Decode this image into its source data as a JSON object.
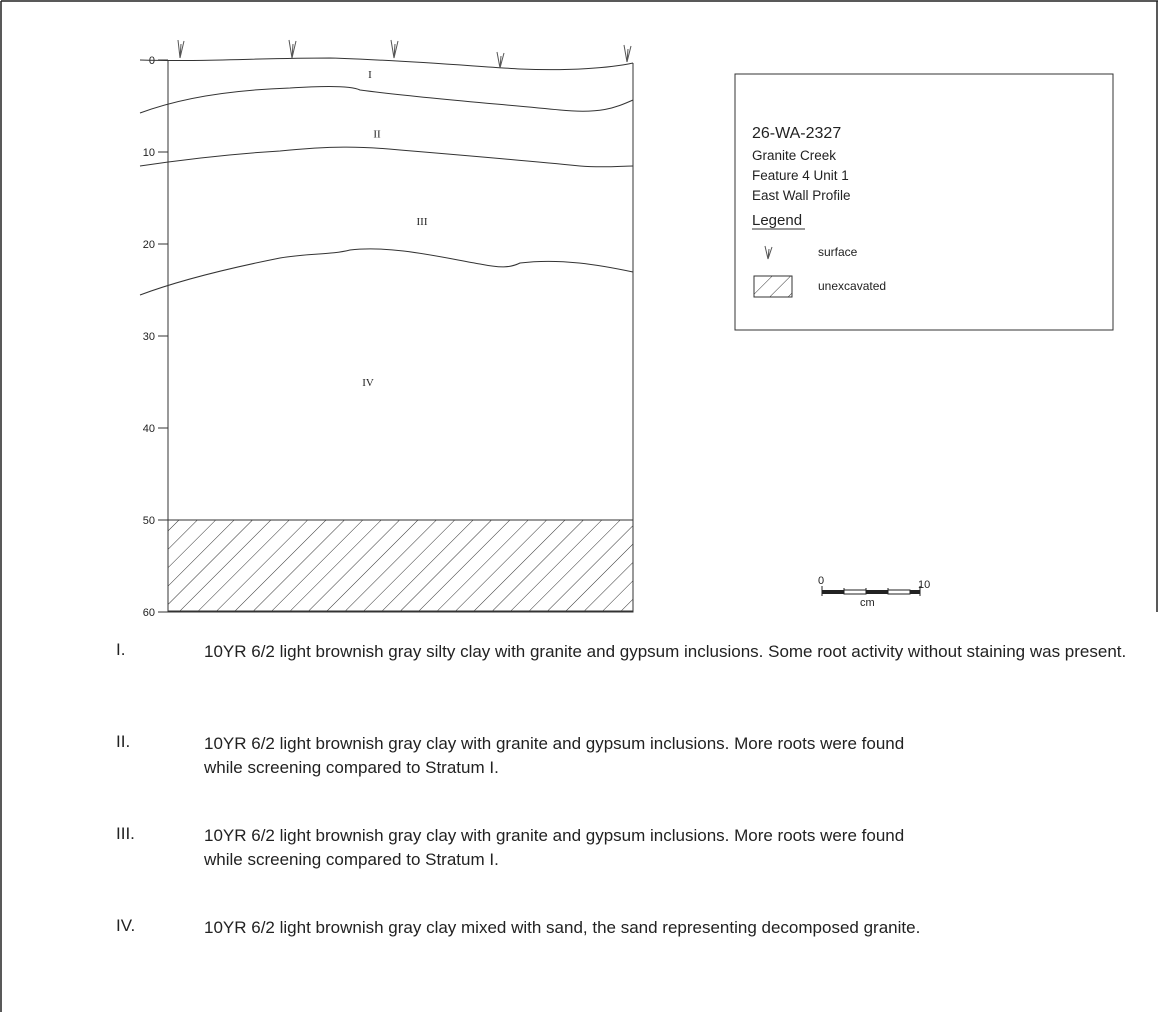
{
  "profile": {
    "depth_unit": "cm",
    "depth_ticks": [
      0,
      10,
      20,
      30,
      40,
      50,
      60
    ],
    "depth_range": [
      0,
      60
    ],
    "unexcavated_from_depth": 50,
    "stratum_labels": [
      {
        "id": "I",
        "label": "I",
        "depth": 1.5
      },
      {
        "id": "II",
        "label": "II",
        "depth": 8
      },
      {
        "id": "III",
        "label": "III",
        "depth": 17.5
      },
      {
        "id": "IV",
        "label": "IV",
        "depth": 35
      }
    ]
  },
  "info_box": {
    "site_number": "26-WA-2327",
    "site_name": "Granite Creek",
    "unit": "Feature 4 Unit 1",
    "profile_name": "East Wall Profile",
    "legend_title": "Legend",
    "legend_items": [
      {
        "icon": "surface-vegetation-icon",
        "label": "surface"
      },
      {
        "icon": "hatched-swatch-icon",
        "label": "unexcavated"
      }
    ]
  },
  "scale_bar": {
    "min_label": "0",
    "max_label": "10",
    "unit_label": "cm"
  },
  "strata_descriptions": [
    {
      "numeral": "I.",
      "text": "10YR 6/2 light brownish gray silty clay with granite and gypsum inclusions. Some root activity without staining was present."
    },
    {
      "numeral": "II.",
      "text": "10YR 6/2 light brownish gray clay with granite and gypsum inclusions. More roots were found while screening compared to Stratum I."
    },
    {
      "numeral": "III.",
      "text": "10YR 6/2 light brownish gray clay with granite and gypsum inclusions. More roots were found while screening compared to Stratum I."
    },
    {
      "numeral": "IV.",
      "text": "10YR 6/2 light brownish gray clay mixed with sand, the sand representing decomposed granite."
    }
  ]
}
